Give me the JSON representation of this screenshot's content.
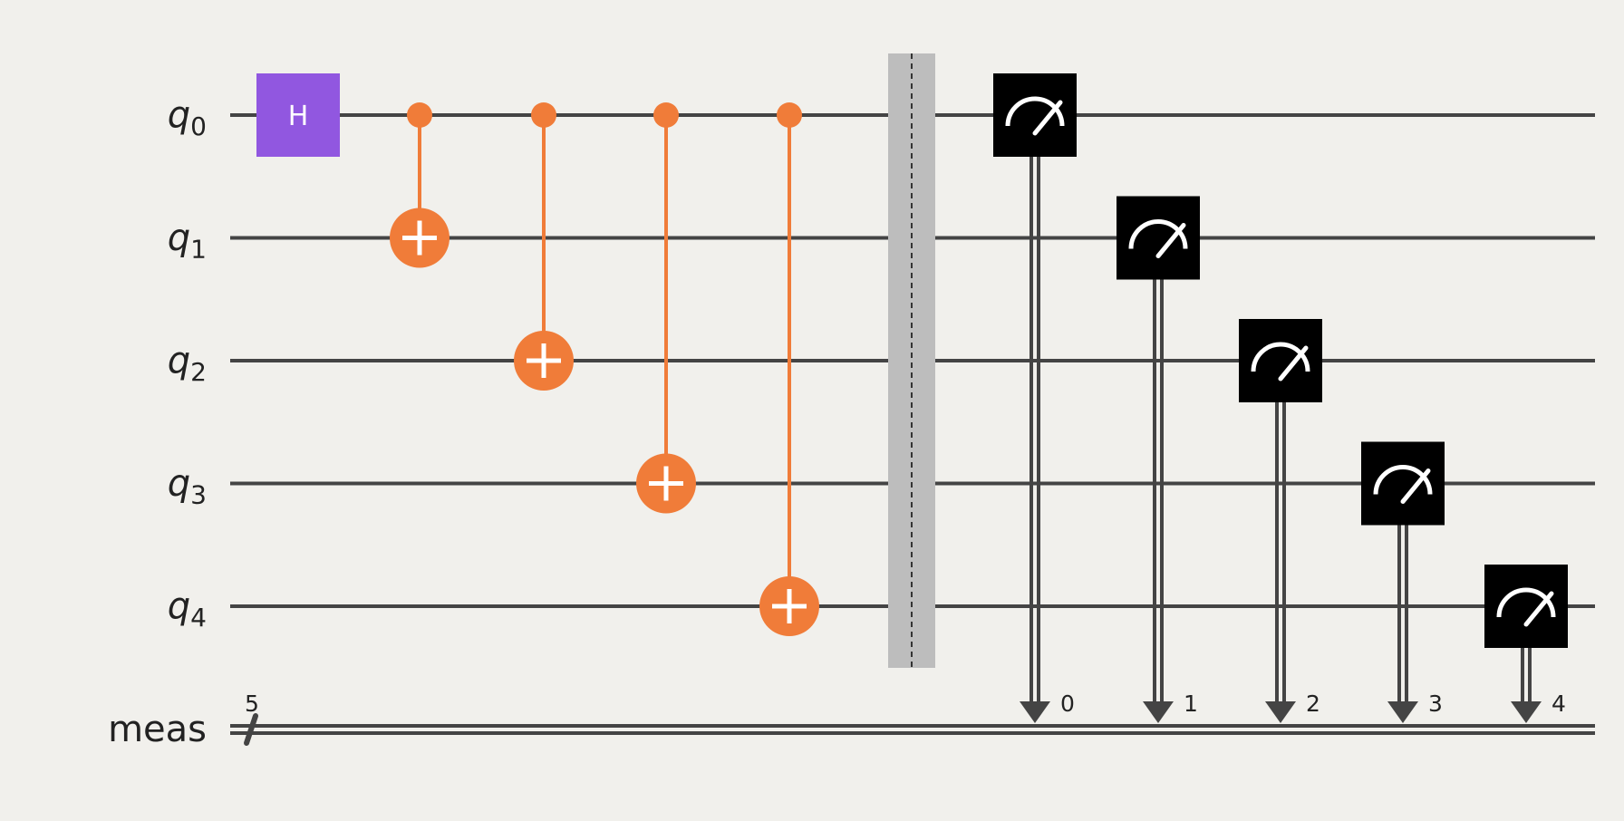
{
  "circuit": {
    "qubits": [
      {
        "name": "q",
        "index": "0"
      },
      {
        "name": "q",
        "index": "1"
      },
      {
        "name": "q",
        "index": "2"
      },
      {
        "name": "q",
        "index": "3"
      },
      {
        "name": "q",
        "index": "4"
      }
    ],
    "classical_register": {
      "name": "meas",
      "size": "5"
    },
    "gates": [
      {
        "type": "h",
        "label": "H",
        "qubit": 0,
        "step": 0
      },
      {
        "type": "cx",
        "control": 0,
        "target": 1,
        "step": 1
      },
      {
        "type": "cx",
        "control": 0,
        "target": 2,
        "step": 2
      },
      {
        "type": "cx",
        "control": 0,
        "target": 3,
        "step": 3
      },
      {
        "type": "cx",
        "control": 0,
        "target": 4,
        "step": 4
      }
    ],
    "barrier": {
      "qubits": [
        0,
        1,
        2,
        3,
        4
      ],
      "step": 5
    },
    "measurements": [
      {
        "qubit": 0,
        "clbit": "0",
        "step": 6
      },
      {
        "qubit": 1,
        "clbit": "1",
        "step": 7
      },
      {
        "qubit": 2,
        "clbit": "2",
        "step": 8
      },
      {
        "qubit": 3,
        "clbit": "3",
        "step": 9
      },
      {
        "qubit": 4,
        "clbit": "4",
        "step": 10
      }
    ],
    "colors": {
      "background": "#f1f0ec",
      "wire": "#444444",
      "h_gate": "#9157e0",
      "cx": "#f07c39",
      "barrier": "#bdbdbd",
      "measure": "#000000",
      "text": "#222222"
    }
  }
}
